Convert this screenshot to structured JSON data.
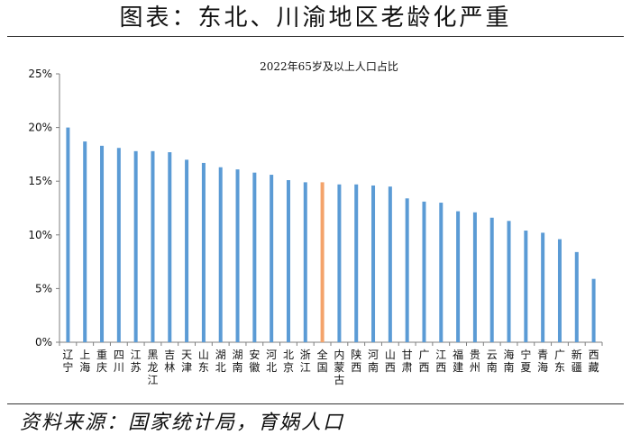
{
  "figure": {
    "title": "图表：东北、川渝地区老龄化严重",
    "source": "资料来源：国家统计局，育娲人口"
  },
  "colors": {
    "bar": "#5B9BD5",
    "highlight": "#F4A36B",
    "axis": "#7f7f7f",
    "text": "#111111"
  },
  "chart_data": {
    "type": "bar",
    "title": "2022年65岁及以上人口占比",
    "xlabel": "",
    "ylabel": "",
    "ylim": [
      0,
      25
    ],
    "yticks": [
      "0%",
      "5%",
      "10%",
      "15%",
      "20%",
      "25%"
    ],
    "grid": false,
    "legend": "none",
    "highlight_category": "全国",
    "categories": [
      "辽宁",
      "上海",
      "重庆",
      "四川",
      "江苏",
      "黑龙江",
      "吉林",
      "天津",
      "山东",
      "湖北",
      "湖南",
      "安徽",
      "河北",
      "北京",
      "浙江",
      "全国",
      "内蒙古",
      "陕西",
      "河南",
      "山西",
      "甘肃",
      "广西",
      "江西",
      "福建",
      "贵州",
      "云南",
      "海南",
      "宁夏",
      "青海",
      "广东",
      "新疆",
      "西藏"
    ],
    "values": [
      20.0,
      18.7,
      18.3,
      18.1,
      17.8,
      17.8,
      17.7,
      17.0,
      16.7,
      16.3,
      16.1,
      15.8,
      15.6,
      15.1,
      14.9,
      14.9,
      14.7,
      14.7,
      14.6,
      14.5,
      13.4,
      13.1,
      13.0,
      12.2,
      12.1,
      11.6,
      11.3,
      10.4,
      10.2,
      9.6,
      8.4,
      5.9
    ]
  }
}
